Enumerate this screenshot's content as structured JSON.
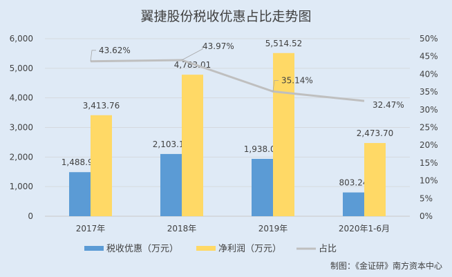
{
  "chart_data": {
    "type": "bar",
    "title": "翼捷股份税收优惠占比走势图",
    "categories": [
      "2017年",
      "2018年",
      "2019年",
      "2020年1-6月"
    ],
    "series": [
      {
        "name": "税收优惠（万元）",
        "type": "bar",
        "axis": "left",
        "color": "#5b9bd5",
        "values": [
          1488.94,
          2103.1,
          1938.0,
          803.24
        ],
        "labels": [
          "1,488.94",
          "2,103.10",
          "1,938.00",
          "803.24"
        ]
      },
      {
        "name": "净利润（万元）",
        "type": "bar",
        "axis": "left",
        "color": "#ffd966",
        "values": [
          3413.76,
          4783.01,
          5514.52,
          2473.7
        ],
        "labels": [
          "3,413.76",
          "4,783.01",
          "5,514.52",
          "2,473.70"
        ]
      },
      {
        "name": "占比",
        "type": "line",
        "axis": "right",
        "color": "#bfbfbf",
        "values": [
          43.62,
          43.97,
          35.14,
          32.47
        ],
        "labels": [
          "43.62%",
          "43.97%",
          "35.14%",
          "32.47%"
        ]
      }
    ],
    "left_axis": {
      "ylim": [
        0,
        6000
      ],
      "ticks": [
        "0",
        "1,000",
        "2,000",
        "3,000",
        "4,000",
        "5,000",
        "6,000"
      ]
    },
    "right_axis": {
      "ylim": [
        0,
        50
      ],
      "ticks": [
        "0%",
        "5%",
        "10%",
        "15%",
        "20%",
        "25%",
        "30%",
        "35%",
        "40%",
        "45%",
        "50%"
      ]
    },
    "grid": true,
    "legend": "bottom"
  },
  "credit": "制图：《金证研》南方资本中心"
}
